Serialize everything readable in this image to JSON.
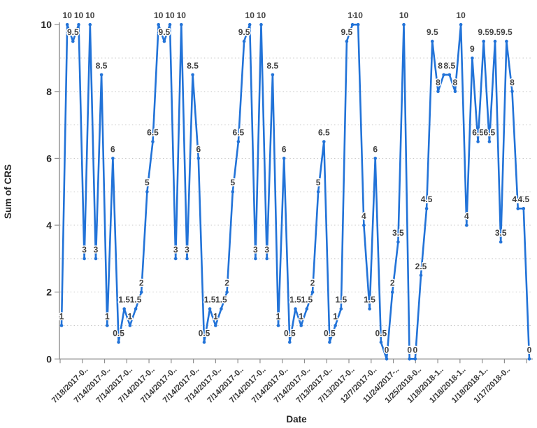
{
  "chart_data": {
    "type": "line",
    "title": "",
    "xlabel": "Date",
    "ylabel": "Sum of CRS",
    "ylim": [
      0,
      10
    ],
    "yticks": [
      0,
      2,
      4,
      6,
      8,
      10
    ],
    "grid": "dotted horizontal gridlines at every integer 1-9",
    "legend": "none",
    "series_color": "#2273d8",
    "marker": "dot",
    "data_labels_shown": true,
    "x_tick_labels": [
      "7/18/2017-0..",
      "7/14/2017-0..",
      "7/14/2017-0..",
      "7/14/2017-0..",
      "7/14/2017-0..",
      "7/14/2017-0..",
      "7/14/2017-0..",
      "7/14/2017-0..",
      "7/14/2017-0..",
      "7/14/2017-0..",
      "7/14/2017-0..",
      "7/13/2017-0..",
      "7/13/2017-0..",
      "12/7/2017-0..",
      "11/24/2017-..",
      "1/25/2018-0..",
      "1/18/2018-1..",
      "1/18/2018-1..",
      "1/18/2018-1..",
      "1/17/2018-0.."
    ],
    "values": [
      1,
      10,
      9.5,
      10,
      3,
      10,
      3,
      8.5,
      1,
      6,
      0.5,
      1.5,
      1,
      1.5,
      2,
      5,
      6.5,
      10,
      9.5,
      10,
      3,
      10,
      3,
      8.5,
      6,
      0.5,
      1.5,
      1,
      1.5,
      2,
      5,
      6.5,
      9.5,
      10,
      3,
      10,
      3,
      8.5,
      1,
      6,
      0.5,
      1.5,
      1,
      1.5,
      2,
      5,
      6.5,
      0.5,
      1,
      1.5,
      9.5,
      10,
      10,
      4,
      1.5,
      6,
      0.5,
      0,
      2,
      3.5,
      10,
      0,
      0,
      2.5,
      4.5,
      9.5,
      8,
      8.5,
      8.5,
      8,
      10,
      4,
      9,
      6.5,
      9.5,
      6.5,
      9.5,
      3.5,
      9.5,
      8,
      4.5,
      4.5,
      0
    ]
  },
  "colors": {
    "background": "#ffffff",
    "gridline": "#c8c8c8",
    "axis": "#8f8f8f",
    "data_label": "#404040",
    "tick_label": "#3a3a3a"
  }
}
